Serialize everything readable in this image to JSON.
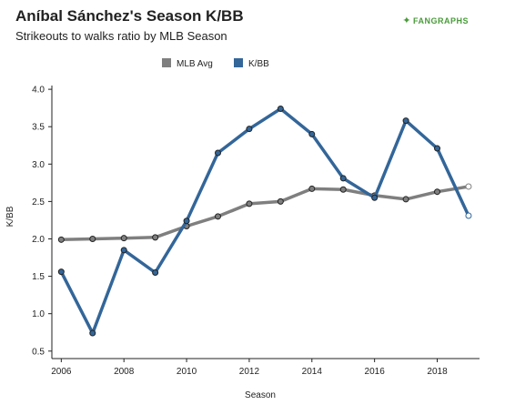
{
  "title": "Aníbal Sánchez's Season K/BB",
  "subtitle": "Strikeouts to walks ratio by MLB Season",
  "logo_text": "FANGRAPHS",
  "chart_data": {
    "type": "line",
    "title": "Aníbal Sánchez's Season K/BB",
    "subtitle": "Strikeouts to walks ratio by MLB Season",
    "xlabel": "Season",
    "ylabel": "K/BB",
    "x": [
      2006,
      2007,
      2008,
      2009,
      2010,
      2011,
      2012,
      2013,
      2014,
      2015,
      2016,
      2017,
      2018,
      2019
    ],
    "xlim": [
      2006,
      2019
    ],
    "ylim": [
      0.4,
      4.05
    ],
    "x_ticks": [
      "2006",
      "2008",
      "2010",
      "2012",
      "2014",
      "2016",
      "2018"
    ],
    "x_tick_values": [
      2006,
      2008,
      2010,
      2012,
      2014,
      2016,
      2018
    ],
    "y_ticks": [
      "0.5",
      "1.0",
      "1.5",
      "2.0",
      "2.5",
      "3.0",
      "3.5",
      "4.0"
    ],
    "y_tick_values": [
      0.5,
      1.0,
      1.5,
      2.0,
      2.5,
      3.0,
      3.5,
      4.0
    ],
    "grid": false,
    "legend_position": "top-center",
    "series": [
      {
        "name": "MLB Avg",
        "color": "#7f7f7f",
        "values": [
          1.99,
          2.0,
          2.01,
          2.02,
          2.17,
          2.3,
          2.47,
          2.5,
          2.67,
          2.66,
          2.58,
          2.53,
          2.63,
          2.7
        ]
      },
      {
        "name": "K/BB",
        "color": "#336699",
        "values": [
          1.56,
          0.74,
          1.85,
          1.55,
          2.24,
          3.15,
          3.47,
          3.74,
          3.4,
          2.81,
          2.55,
          3.58,
          3.21,
          2.31
        ]
      }
    ]
  }
}
